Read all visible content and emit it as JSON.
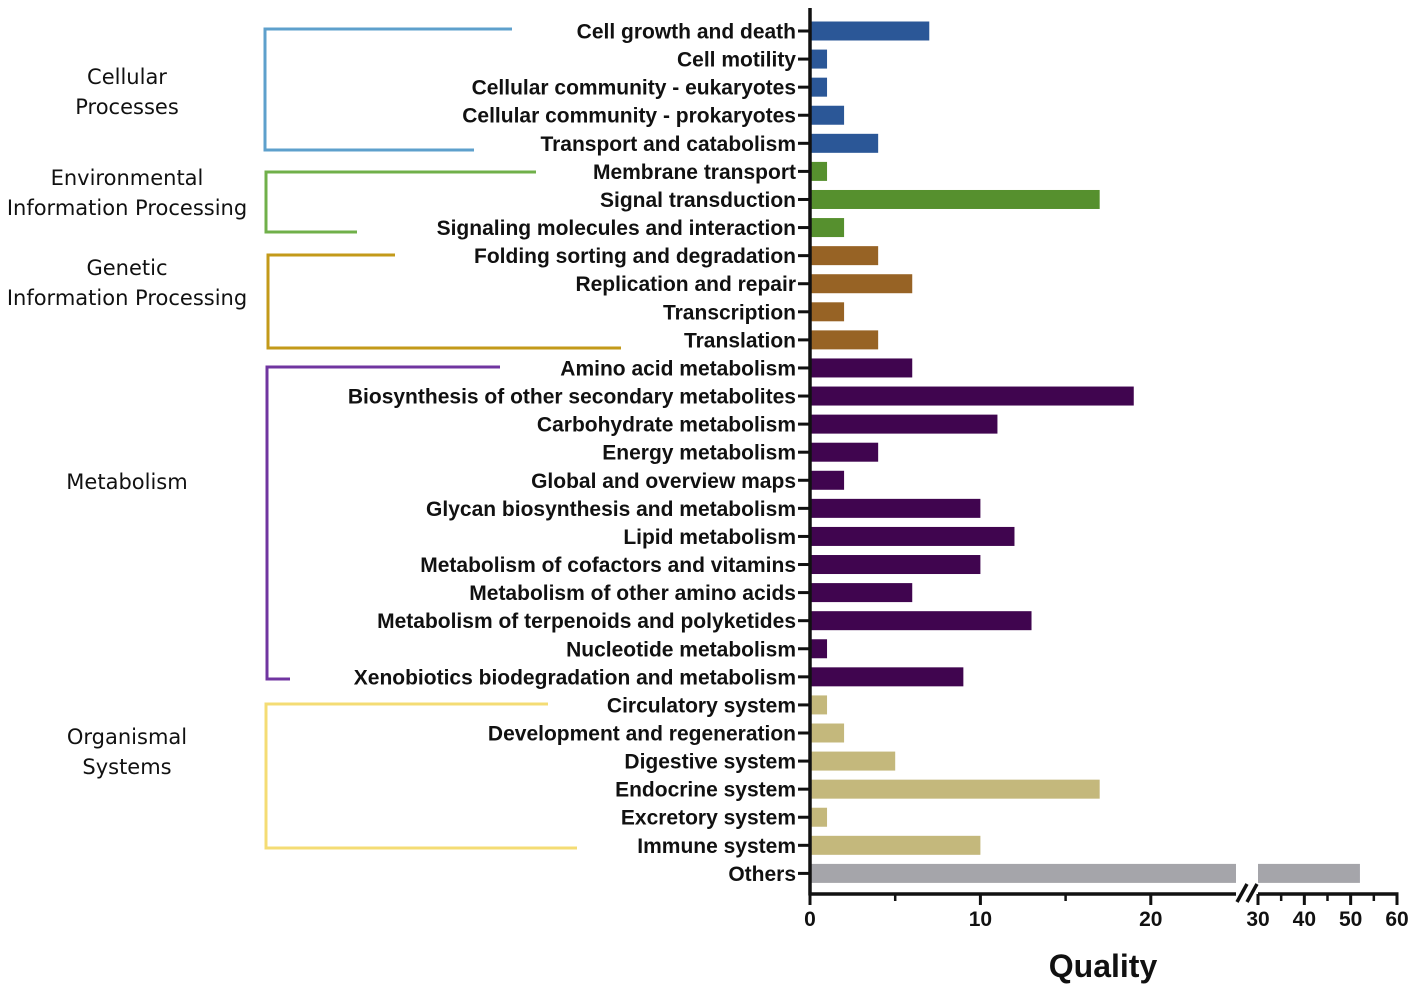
{
  "chart_data": {
    "type": "bar",
    "orientation": "horizontal",
    "xlabel": "Quality",
    "axis_break": {
      "segment1_range": [
        0,
        25
      ],
      "segment2_range": [
        30,
        60
      ]
    },
    "ticks_segment1": [
      "0",
      "10",
      "20"
    ],
    "ticks_segment1_values": [
      0,
      10,
      20
    ],
    "ticks_segment2": [
      "30",
      "40",
      "50",
      "60"
    ],
    "ticks_segment2_values": [
      30,
      40,
      50,
      60
    ],
    "colors": {
      "Cellular Processes": "#2b5797",
      "Environmental Information Processing": "#56902e",
      "Genetic Information Processing": "#976325",
      "Metabolism": "#40054f",
      "Organismal Systems": "#c4b87c",
      "Others": "#a5a5aa"
    },
    "bracket_colors": {
      "Cellular Processes": "#5ea0cc",
      "Environmental Information Processing": "#70b04a",
      "Genetic Information Processing": "#c39a1a",
      "Metabolism": "#7035a0",
      "Organismal Systems": "#f4dc74"
    },
    "groups": [
      {
        "name": "Cellular Processes",
        "label_lines": [
          "Cellular",
          "Processes"
        ]
      },
      {
        "name": "Environmental Information Processing",
        "label_lines": [
          "Environmental",
          "Information Processing"
        ]
      },
      {
        "name": "Genetic Information Processing",
        "label_lines": [
          "Genetic",
          "Information Processing"
        ]
      },
      {
        "name": "Metabolism",
        "label_lines": [
          "Metabolism"
        ]
      },
      {
        "name": "Organismal Systems",
        "label_lines": [
          "Organismal",
          "Systems"
        ]
      }
    ],
    "bars": [
      {
        "label": "Cell growth and death",
        "value": 7,
        "group": "Cellular Processes"
      },
      {
        "label": "Cell motility",
        "value": 1,
        "group": "Cellular Processes"
      },
      {
        "label": "Cellular community - eukaryotes",
        "value": 1,
        "group": "Cellular Processes"
      },
      {
        "label": "Cellular community - prokaryotes",
        "value": 2,
        "group": "Cellular Processes"
      },
      {
        "label": "Transport and catabolism",
        "value": 4,
        "group": "Cellular Processes"
      },
      {
        "label": "Membrane transport",
        "value": 1,
        "group": "Environmental Information Processing"
      },
      {
        "label": "Signal transduction",
        "value": 17,
        "group": "Environmental Information Processing"
      },
      {
        "label": "Signaling molecules and interaction",
        "value": 2,
        "group": "Environmental Information Processing"
      },
      {
        "label": "Folding sorting and degradation",
        "value": 4,
        "group": "Genetic Information Processing"
      },
      {
        "label": "Replication and repair",
        "value": 6,
        "group": "Genetic Information Processing"
      },
      {
        "label": "Transcription",
        "value": 2,
        "group": "Genetic Information Processing"
      },
      {
        "label": "Translation",
        "value": 4,
        "group": "Genetic Information Processing"
      },
      {
        "label": "Amino acid metabolism",
        "value": 6,
        "group": "Metabolism"
      },
      {
        "label": "Biosynthesis of other secondary metabolites",
        "value": 19,
        "group": "Metabolism"
      },
      {
        "label": "Carbohydrate metabolism",
        "value": 11,
        "group": "Metabolism"
      },
      {
        "label": "Energy metabolism",
        "value": 4,
        "group": "Metabolism"
      },
      {
        "label": "Global and overview maps",
        "value": 2,
        "group": "Metabolism"
      },
      {
        "label": "Glycan biosynthesis and metabolism",
        "value": 10,
        "group": "Metabolism"
      },
      {
        "label": "Lipid metabolism",
        "value": 12,
        "group": "Metabolism"
      },
      {
        "label": "Metabolism of cofactors and vitamins",
        "value": 10,
        "group": "Metabolism"
      },
      {
        "label": "Metabolism of other amino acids",
        "value": 6,
        "group": "Metabolism"
      },
      {
        "label": "Metabolism of terpenoids and polyketides",
        "value": 13,
        "group": "Metabolism"
      },
      {
        "label": "Nucleotide metabolism",
        "value": 1,
        "group": "Metabolism"
      },
      {
        "label": "Xenobiotics biodegradation and metabolism",
        "value": 9,
        "group": "Metabolism"
      },
      {
        "label": "Circulatory system",
        "value": 1,
        "group": "Organismal Systems"
      },
      {
        "label": "Development and regeneration",
        "value": 2,
        "group": "Organismal Systems"
      },
      {
        "label": "Digestive system",
        "value": 5,
        "group": "Organismal Systems"
      },
      {
        "label": "Endocrine system",
        "value": 17,
        "group": "Organismal Systems"
      },
      {
        "label": "Excretory system",
        "value": 1,
        "group": "Organismal Systems"
      },
      {
        "label": "Immune system",
        "value": 10,
        "group": "Organismal Systems"
      },
      {
        "label": "Others",
        "value": 52,
        "group": "Others"
      }
    ]
  }
}
